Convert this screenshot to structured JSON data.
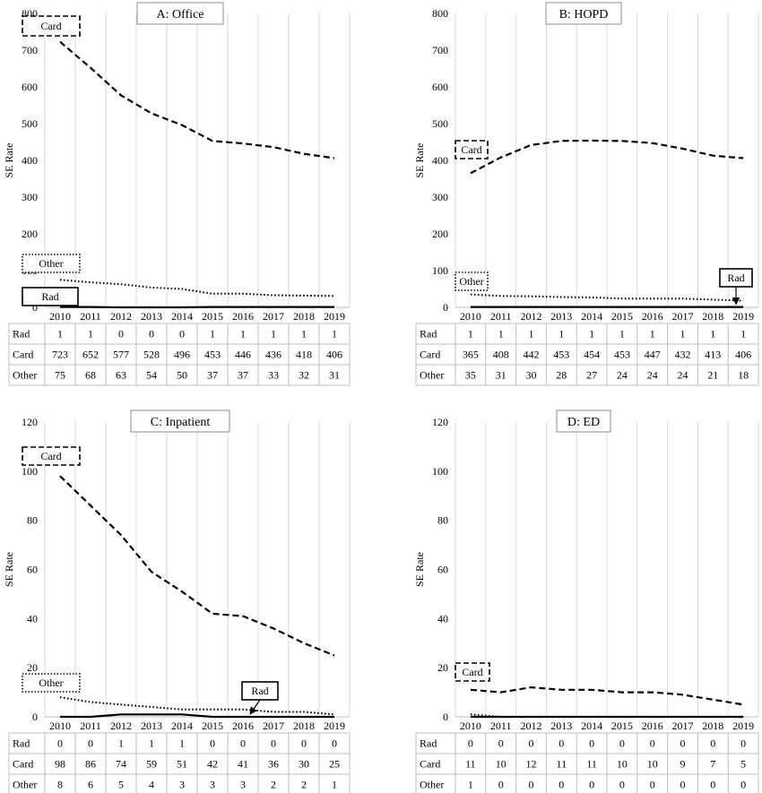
{
  "chart_data": [
    {
      "type": "line",
      "title": "A: Office",
      "ylabel": "SE Rate",
      "ylim": [
        0,
        800
      ],
      "yticks": [
        0,
        100,
        200,
        300,
        400,
        500,
        600,
        700,
        800
      ],
      "x": [
        "2010",
        "2011",
        "2012",
        "2013",
        "2014",
        "2015",
        "2016",
        "2017",
        "2018",
        "2019"
      ],
      "grid": true,
      "series": [
        {
          "name": "Rad",
          "style": "solid",
          "values": [
            1,
            1,
            0,
            0,
            0,
            1,
            1,
            1,
            1,
            1
          ]
        },
        {
          "name": "Card",
          "style": "dashed",
          "values": [
            723,
            652,
            577,
            528,
            496,
            453,
            446,
            436,
            418,
            406
          ]
        },
        {
          "name": "Other",
          "style": "dotted",
          "values": [
            75,
            68,
            63,
            54,
            50,
            37,
            37,
            33,
            32,
            31
          ]
        }
      ]
    },
    {
      "type": "line",
      "title": "B: HOPD",
      "ylabel": "SE Rate",
      "ylim": [
        0,
        800
      ],
      "yticks": [
        0,
        100,
        200,
        300,
        400,
        500,
        600,
        700,
        800
      ],
      "x": [
        "2010",
        "2011",
        "2012",
        "2013",
        "2014",
        "2015",
        "2016",
        "2017",
        "2018",
        "2019"
      ],
      "grid": true,
      "series": [
        {
          "name": "Rad",
          "style": "solid",
          "values": [
            1,
            1,
            1,
            1,
            1,
            1,
            1,
            1,
            1,
            1
          ]
        },
        {
          "name": "Card",
          "style": "dashed",
          "values": [
            365,
            408,
            442,
            453,
            454,
            453,
            447,
            432,
            413,
            406
          ]
        },
        {
          "name": "Other",
          "style": "dotted",
          "values": [
            35,
            31,
            30,
            28,
            27,
            24,
            24,
            24,
            21,
            18
          ]
        }
      ]
    },
    {
      "type": "line",
      "title": "C: Inpatient",
      "ylabel": "SE Rate",
      "ylim": [
        0,
        120
      ],
      "yticks": [
        0,
        20,
        40,
        60,
        80,
        100,
        120
      ],
      "x": [
        "2010",
        "2011",
        "2012",
        "2013",
        "2014",
        "2015",
        "2016",
        "2017",
        "2018",
        "2019"
      ],
      "grid": true,
      "series": [
        {
          "name": "Rad",
          "style": "solid",
          "values": [
            0,
            0,
            1,
            1,
            1,
            0,
            0,
            0,
            0,
            0
          ]
        },
        {
          "name": "Card",
          "style": "dashed",
          "values": [
            98,
            86,
            74,
            59,
            51,
            42,
            41,
            36,
            30,
            25
          ]
        },
        {
          "name": "Other",
          "style": "dotted",
          "values": [
            8,
            6,
            5,
            4,
            3,
            3,
            3,
            2,
            2,
            1
          ]
        }
      ]
    },
    {
      "type": "line",
      "title": "D: ED",
      "ylabel": "SE Rate",
      "ylim": [
        0,
        120
      ],
      "yticks": [
        0,
        20,
        40,
        60,
        80,
        100,
        120
      ],
      "x": [
        "2010",
        "2011",
        "2012",
        "2013",
        "2014",
        "2015",
        "2016",
        "2017",
        "2018",
        "2019"
      ],
      "grid": true,
      "series": [
        {
          "name": "Rad",
          "style": "solid",
          "values": [
            0,
            0,
            0,
            0,
            0,
            0,
            0,
            0,
            0,
            0
          ]
        },
        {
          "name": "Card",
          "style": "dashed",
          "values": [
            11,
            10,
            12,
            11,
            11,
            10,
            10,
            9,
            7,
            5
          ]
        },
        {
          "name": "Other",
          "style": "dotted",
          "values": [
            1,
            0,
            0,
            0,
            0,
            0,
            0,
            0,
            0,
            0
          ]
        }
      ]
    }
  ]
}
